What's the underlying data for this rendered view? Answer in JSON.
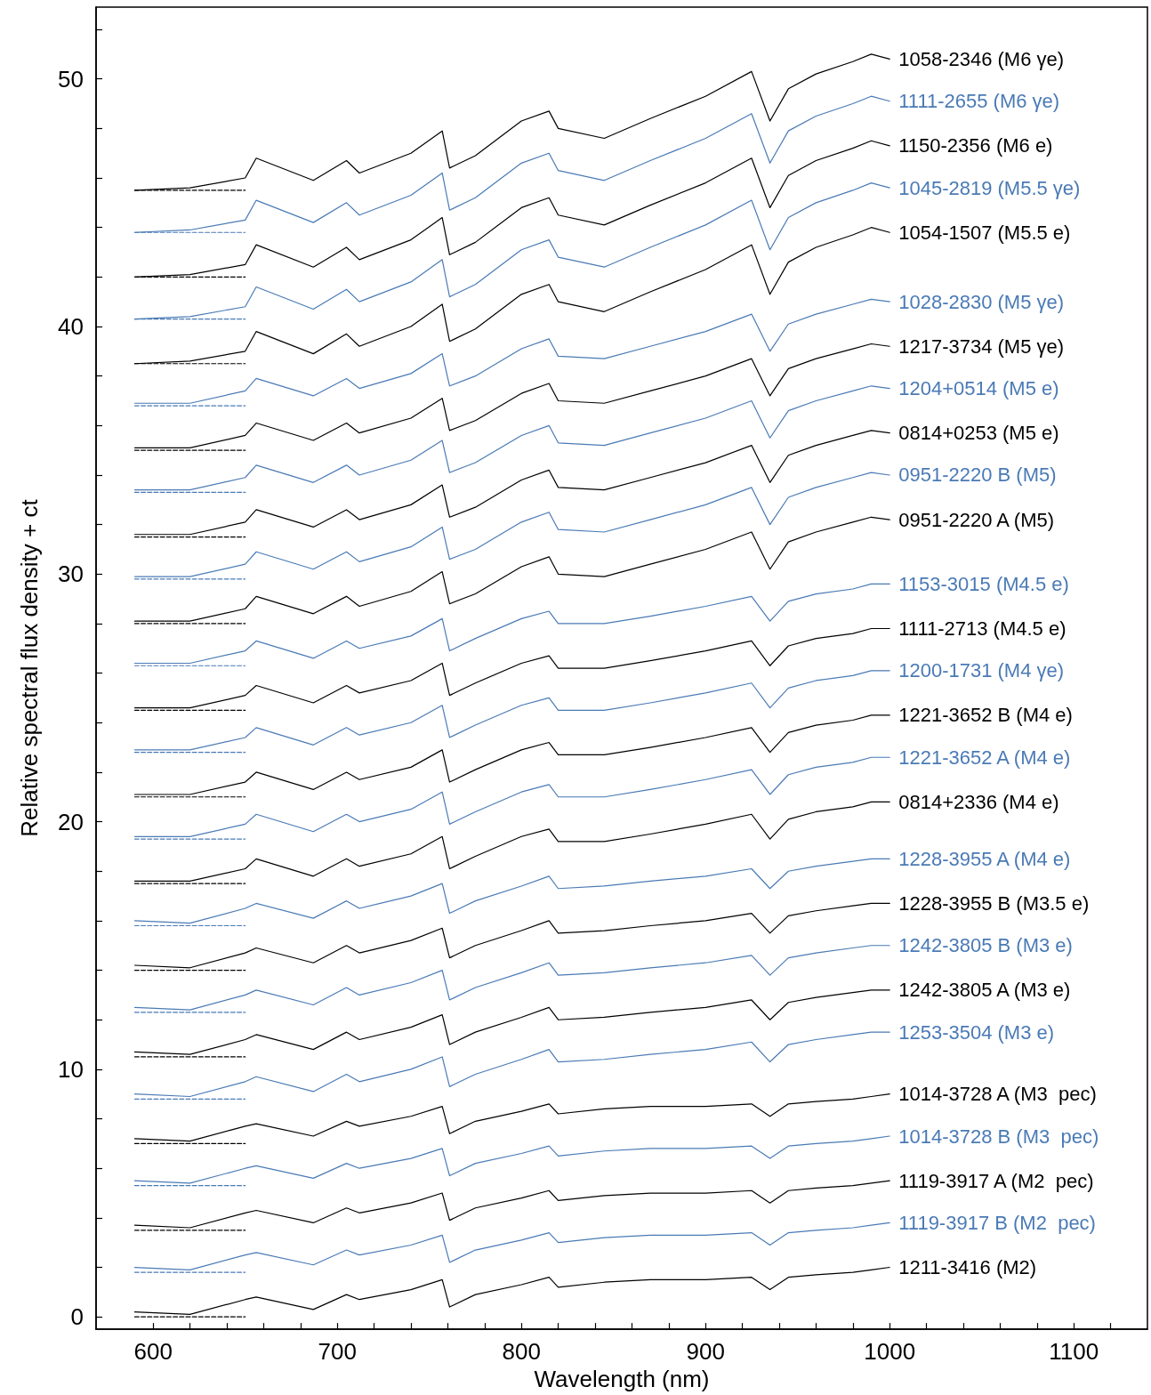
{
  "chart_data": {
    "type": "line",
    "xlabel": "Wavelength (nm)",
    "ylabel": "Relative spectral flux density + ct",
    "xlim": [
      569,
      1140
    ],
    "ylim": [
      -0.5,
      52.9
    ],
    "xticks": [
      600,
      {
        "value": 620,
        "label": null
      },
      {
        "value": 640,
        "label": null
      },
      {
        "value": 660,
        "label": null
      },
      {
        "value": 680,
        "label": null
      },
      700,
      {
        "value": 720,
        "label": null
      },
      {
        "value": 740,
        "label": null
      },
      {
        "value": 760,
        "label": null
      },
      {
        "value": 780,
        "label": null
      },
      800,
      {
        "value": 820,
        "label": null
      },
      {
        "value": 840,
        "label": null
      },
      {
        "value": 860,
        "label": null
      },
      {
        "value": 880,
        "label": null
      },
      900,
      {
        "value": 920,
        "label": null
      },
      {
        "value": 940,
        "label": null
      },
      {
        "value": 960,
        "label": null
      },
      {
        "value": 980,
        "label": null
      },
      1000,
      {
        "value": 1020,
        "label": null
      },
      {
        "value": 1040,
        "label": null
      },
      {
        "value": 1060,
        "label": null
      },
      {
        "value": 1080,
        "label": null
      },
      1100,
      {
        "value": 1120,
        "label": null
      }
    ],
    "yticks": [
      0,
      {
        "value": 2,
        "label": null
      },
      {
        "value": 4,
        "label": null
      },
      {
        "value": 6,
        "label": null
      },
      {
        "value": 8,
        "label": null
      },
      10,
      {
        "value": 12,
        "label": null
      },
      {
        "value": 14,
        "label": null
      },
      {
        "value": 16,
        "label": null
      },
      {
        "value": 18,
        "label": null
      },
      20,
      {
        "value": 22,
        "label": null
      },
      {
        "value": 24,
        "label": null
      },
      {
        "value": 26,
        "label": null
      },
      {
        "value": 28,
        "label": null
      },
      30,
      {
        "value": 32,
        "label": null
      },
      {
        "value": 34,
        "label": null
      },
      {
        "value": 36,
        "label": null
      },
      {
        "value": 38,
        "label": null
      },
      40,
      {
        "value": 42,
        "label": null
      },
      {
        "value": 44,
        "label": null
      },
      {
        "value": 46,
        "label": null
      },
      {
        "value": 48,
        "label": null
      },
      50,
      {
        "value": 52,
        "label": null
      }
    ],
    "grid": false,
    "legend": false,
    "marker": "none",
    "line_style": "solid",
    "x": [
      590,
      620,
      650,
      656,
      687,
      705,
      712,
      740,
      757,
      761,
      775,
      800,
      815,
      820,
      845,
      870,
      900,
      925,
      935,
      945,
      960,
      980,
      990,
      1000
    ],
    "series": [
      {
        "name": "1211-3416 (M2)",
        "color": "#000000",
        "values": [
          0.2,
          0.1,
          0.7,
          0.8,
          0.3,
          0.9,
          0.7,
          1.1,
          1.5,
          0.4,
          0.9,
          1.3,
          1.6,
          1.2,
          1.4,
          1.5,
          1.5,
          1.6,
          1.1,
          1.6,
          1.7,
          1.8,
          1.9,
          2.0
        ]
      },
      {
        "name": "1119-3917 B (M2  pec)",
        "color": "#4a7ab5",
        "values": [
          2.0,
          1.9,
          2.5,
          2.6,
          2.1,
          2.7,
          2.5,
          2.9,
          3.3,
          2.2,
          2.7,
          3.1,
          3.4,
          3.0,
          3.2,
          3.3,
          3.3,
          3.4,
          2.9,
          3.4,
          3.5,
          3.6,
          3.7,
          3.8
        ]
      },
      {
        "name": "1119-3917 A (M2  pec)",
        "color": "#000000",
        "values": [
          3.7,
          3.6,
          4.2,
          4.3,
          3.8,
          4.4,
          4.2,
          4.6,
          5.0,
          3.9,
          4.4,
          4.8,
          5.1,
          4.7,
          4.9,
          5.0,
          5.0,
          5.1,
          4.6,
          5.1,
          5.2,
          5.3,
          5.4,
          5.5
        ]
      },
      {
        "name": "1014-3728 B (M3  pec)",
        "color": "#4a7ab5",
        "values": [
          5.5,
          5.4,
          6.0,
          6.1,
          5.6,
          6.2,
          6.0,
          6.4,
          6.8,
          5.7,
          6.2,
          6.6,
          6.9,
          6.5,
          6.7,
          6.8,
          6.8,
          6.9,
          6.4,
          6.9,
          7.0,
          7.1,
          7.2,
          7.3
        ]
      },
      {
        "name": "1014-3728 A (M3  pec)",
        "color": "#000000",
        "values": [
          7.2,
          7.1,
          7.7,
          7.8,
          7.3,
          7.9,
          7.7,
          8.1,
          8.5,
          7.4,
          7.9,
          8.3,
          8.6,
          8.2,
          8.4,
          8.5,
          8.5,
          8.6,
          8.1,
          8.6,
          8.7,
          8.8,
          8.9,
          9.0
        ]
      },
      {
        "name": "1253-3504 (M3 e)",
        "color": "#4a7ab5",
        "values": [
          9.0,
          8.9,
          9.5,
          9.7,
          9.1,
          9.8,
          9.5,
          10.0,
          10.5,
          9.3,
          9.8,
          10.4,
          10.8,
          10.3,
          10.4,
          10.6,
          10.8,
          11.1,
          10.3,
          11.0,
          11.2,
          11.4,
          11.5,
          11.5
        ]
      },
      {
        "name": "1242-3805 A (M3 e)",
        "color": "#000000",
        "values": [
          10.7,
          10.6,
          11.2,
          11.4,
          10.8,
          11.5,
          11.2,
          11.7,
          12.2,
          11.0,
          11.5,
          12.1,
          12.5,
          12.0,
          12.1,
          12.3,
          12.5,
          12.8,
          12.0,
          12.7,
          12.9,
          13.1,
          13.2,
          13.2
        ]
      },
      {
        "name": "1242-3805 B (M3 e)",
        "color": "#4a7ab5",
        "values": [
          12.5,
          12.4,
          13.0,
          13.2,
          12.6,
          13.3,
          13.0,
          13.5,
          14.0,
          12.8,
          13.3,
          13.9,
          14.3,
          13.8,
          13.9,
          14.1,
          14.3,
          14.6,
          13.8,
          14.5,
          14.7,
          14.9,
          15.0,
          15.0
        ]
      },
      {
        "name": "1228-3955 B (M3.5 e)",
        "color": "#000000",
        "values": [
          14.2,
          14.1,
          14.7,
          14.9,
          14.3,
          15.0,
          14.7,
          15.2,
          15.7,
          14.5,
          15.0,
          15.6,
          16.0,
          15.5,
          15.6,
          15.8,
          16.0,
          16.3,
          15.5,
          16.2,
          16.4,
          16.6,
          16.7,
          16.7
        ]
      },
      {
        "name": "1228-3955 A (M4 e)",
        "color": "#4a7ab5",
        "values": [
          16.0,
          15.9,
          16.5,
          16.7,
          16.1,
          16.8,
          16.5,
          17.0,
          17.5,
          16.3,
          16.8,
          17.4,
          17.8,
          17.3,
          17.4,
          17.6,
          17.8,
          18.1,
          17.3,
          18.0,
          18.2,
          18.4,
          18.5,
          18.5
        ]
      },
      {
        "name": "0814+2336 (M4 e)",
        "color": "#000000",
        "values": [
          17.6,
          17.6,
          18.1,
          18.5,
          17.8,
          18.5,
          18.2,
          18.7,
          19.4,
          18.1,
          18.6,
          19.4,
          19.7,
          19.2,
          19.2,
          19.5,
          19.9,
          20.3,
          19.3,
          20.1,
          20.4,
          20.6,
          20.8,
          20.8
        ]
      },
      {
        "name": "1221-3652 A (M4 e)",
        "color": "#4a7ab5",
        "values": [
          19.4,
          19.4,
          19.9,
          20.3,
          19.6,
          20.3,
          20.0,
          20.5,
          21.2,
          19.9,
          20.4,
          21.2,
          21.5,
          21.0,
          21.0,
          21.3,
          21.7,
          22.1,
          21.1,
          21.9,
          22.2,
          22.4,
          22.6,
          22.6
        ]
      },
      {
        "name": "1221-3652 B (M4 e)",
        "color": "#000000",
        "values": [
          21.1,
          21.1,
          21.6,
          22.0,
          21.3,
          22.0,
          21.7,
          22.2,
          22.9,
          21.6,
          22.1,
          22.9,
          23.2,
          22.7,
          22.7,
          23.0,
          23.4,
          23.8,
          22.8,
          23.6,
          23.9,
          24.1,
          24.3,
          24.3
        ]
      },
      {
        "name": "1200-1731 (M4 γe)",
        "color": "#4a7ab5",
        "values": [
          22.9,
          22.9,
          23.4,
          23.8,
          23.1,
          23.8,
          23.5,
          24.0,
          24.7,
          23.4,
          23.9,
          24.7,
          25.0,
          24.5,
          24.5,
          24.8,
          25.2,
          25.6,
          24.6,
          25.4,
          25.7,
          25.9,
          26.1,
          26.1
        ]
      },
      {
        "name": "1111-2713 (M4.5 e)",
        "color": "#000000",
        "values": [
          24.6,
          24.6,
          25.1,
          25.5,
          24.8,
          25.5,
          25.2,
          25.7,
          26.4,
          25.1,
          25.6,
          26.4,
          26.7,
          26.2,
          26.2,
          26.5,
          26.9,
          27.3,
          26.3,
          27.1,
          27.4,
          27.6,
          27.8,
          27.8
        ]
      },
      {
        "name": "1153-3015 (M4.5 e)",
        "color": "#4a7ab5",
        "values": [
          26.4,
          26.4,
          26.9,
          27.3,
          26.6,
          27.3,
          27.0,
          27.5,
          28.2,
          26.9,
          27.4,
          28.2,
          28.5,
          28.0,
          28.0,
          28.3,
          28.7,
          29.1,
          28.1,
          28.9,
          29.2,
          29.4,
          29.6,
          29.6
        ]
      },
      {
        "name": "0951-2220 A (M5)",
        "color": "#000000",
        "values": [
          28.1,
          28.1,
          28.6,
          29.1,
          28.4,
          29.1,
          28.7,
          29.3,
          30.1,
          28.8,
          29.2,
          30.3,
          30.7,
          30.0,
          29.9,
          30.4,
          31.0,
          31.7,
          30.2,
          31.3,
          31.7,
          32.1,
          32.3,
          32.2
        ]
      },
      {
        "name": "0951-2220 B (M5)",
        "color": "#4a7ab5",
        "values": [
          29.9,
          29.9,
          30.4,
          30.9,
          30.2,
          30.9,
          30.5,
          31.1,
          31.9,
          30.6,
          31.0,
          32.1,
          32.5,
          31.8,
          31.7,
          32.2,
          32.8,
          33.5,
          32.0,
          33.1,
          33.5,
          33.9,
          34.1,
          34.0
        ]
      },
      {
        "name": "0814+0253 (M5 e)",
        "color": "#000000",
        "values": [
          31.6,
          31.6,
          32.1,
          32.6,
          31.9,
          32.6,
          32.2,
          32.8,
          33.6,
          32.3,
          32.7,
          33.8,
          34.2,
          33.5,
          33.4,
          33.9,
          34.5,
          35.2,
          33.7,
          34.8,
          35.2,
          35.6,
          35.8,
          35.7
        ]
      },
      {
        "name": "1204+0514 (M5 e)",
        "color": "#4a7ab5",
        "values": [
          33.4,
          33.4,
          33.9,
          34.4,
          33.7,
          34.4,
          34.0,
          34.6,
          35.4,
          34.1,
          34.5,
          35.6,
          36.0,
          35.3,
          35.2,
          35.7,
          36.3,
          37.0,
          35.5,
          36.6,
          37.0,
          37.4,
          37.6,
          37.5
        ]
      },
      {
        "name": "1217-3734 (M5 γe)",
        "color": "#000000",
        "values": [
          35.1,
          35.1,
          35.6,
          36.1,
          35.4,
          36.1,
          35.7,
          36.3,
          37.1,
          35.8,
          36.2,
          37.3,
          37.7,
          37.0,
          36.9,
          37.4,
          38.0,
          38.7,
          37.2,
          38.3,
          38.7,
          39.1,
          39.3,
          39.2
        ]
      },
      {
        "name": "1028-2830 (M5 γe)",
        "color": "#4a7ab5",
        "values": [
          36.9,
          36.9,
          37.4,
          37.9,
          37.2,
          37.9,
          37.5,
          38.1,
          38.9,
          37.6,
          38.0,
          39.1,
          39.5,
          38.8,
          38.7,
          39.2,
          39.8,
          40.5,
          39.0,
          40.1,
          40.5,
          40.9,
          41.1,
          41.0
        ]
      },
      {
        "name": "1054-1507 (M5.5 e)",
        "color": "#000000",
        "values": [
          38.5,
          38.6,
          39.0,
          39.8,
          38.9,
          39.7,
          39.2,
          40.0,
          40.9,
          39.4,
          39.9,
          41.3,
          41.7,
          41.0,
          40.6,
          41.4,
          42.3,
          43.3,
          41.3,
          42.6,
          43.2,
          43.7,
          44.0,
          43.8
        ]
      },
      {
        "name": "1045-2819 (M5.5 γe)",
        "color": "#4a7ab5",
        "values": [
          40.3,
          40.4,
          40.8,
          41.6,
          40.7,
          41.5,
          41.0,
          41.8,
          42.7,
          41.2,
          41.7,
          43.1,
          43.5,
          42.8,
          42.4,
          43.2,
          44.1,
          45.1,
          43.1,
          44.4,
          45.0,
          45.5,
          45.8,
          45.6
        ]
      },
      {
        "name": "1150-2356 (M6 e)",
        "color": "#000000",
        "values": [
          42.0,
          42.1,
          42.5,
          43.3,
          42.4,
          43.2,
          42.7,
          43.5,
          44.4,
          42.9,
          43.4,
          44.8,
          45.2,
          44.5,
          44.1,
          44.9,
          45.8,
          46.8,
          44.8,
          46.1,
          46.7,
          47.2,
          47.5,
          47.3
        ]
      },
      {
        "name": "1111-2655 (M6 γe)",
        "color": "#4a7ab5",
        "values": [
          43.8,
          43.9,
          44.3,
          45.1,
          44.2,
          45.0,
          44.5,
          45.3,
          46.2,
          44.7,
          45.2,
          46.6,
          47.0,
          46.3,
          45.9,
          46.7,
          47.6,
          48.6,
          46.6,
          47.9,
          48.5,
          49.0,
          49.3,
          49.1
        ]
      },
      {
        "name": "1058-2346 (M6 γe)",
        "color": "#000000",
        "values": [
          45.5,
          45.6,
          46.0,
          46.8,
          45.9,
          46.7,
          46.2,
          47.0,
          47.9,
          46.4,
          46.9,
          48.3,
          48.7,
          48.0,
          47.6,
          48.4,
          49.3,
          50.3,
          48.3,
          49.6,
          50.2,
          50.7,
          51.0,
          50.8
        ]
      },
      {
        "color": "#000000",
        "line_style": "dashed",
        "values": [
          0,
          0,
          0,
          null,
          null,
          null,
          null,
          null,
          null,
          null,
          null,
          null,
          null,
          null,
          null,
          null,
          null,
          null,
          null,
          null,
          null,
          null,
          null,
          null
        ]
      },
      {
        "color": "#4a7ab5",
        "line_style": "dashed",
        "values": [
          1.8,
          1.8,
          1.8,
          null,
          null,
          null,
          null,
          null,
          null,
          null,
          null,
          null,
          null,
          null,
          null,
          null,
          null,
          null,
          null,
          null,
          null,
          null,
          null,
          null
        ]
      },
      {
        "color": "#000000",
        "line_style": "dashed",
        "values": [
          3.5,
          3.5,
          3.5,
          null,
          null,
          null,
          null,
          null,
          null,
          null,
          null,
          null,
          null,
          null,
          null,
          null,
          null,
          null,
          null,
          null,
          null,
          null,
          null,
          null
        ]
      },
      {
        "color": "#4a7ab5",
        "line_style": "dashed",
        "values": [
          5.3,
          5.3,
          5.3,
          null,
          null,
          null,
          null,
          null,
          null,
          null,
          null,
          null,
          null,
          null,
          null,
          null,
          null,
          null,
          null,
          null,
          null,
          null,
          null,
          null
        ]
      },
      {
        "color": "#000000",
        "line_style": "dashed",
        "values": [
          7,
          7,
          7,
          null,
          null,
          null,
          null,
          null,
          null,
          null,
          null,
          null,
          null,
          null,
          null,
          null,
          null,
          null,
          null,
          null,
          null,
          null,
          null,
          null
        ]
      },
      {
        "color": "#4a7ab5",
        "line_style": "dashed",
        "values": [
          8.8,
          8.8,
          8.8,
          null,
          null,
          null,
          null,
          null,
          null,
          null,
          null,
          null,
          null,
          null,
          null,
          null,
          null,
          null,
          null,
          null,
          null,
          null,
          null,
          null
        ]
      },
      {
        "color": "#000000",
        "line_style": "dashed",
        "values": [
          10.5,
          10.5,
          10.5,
          null,
          null,
          null,
          null,
          null,
          null,
          null,
          null,
          null,
          null,
          null,
          null,
          null,
          null,
          null,
          null,
          null,
          null,
          null,
          null,
          null
        ]
      },
      {
        "color": "#4a7ab5",
        "line_style": "dashed",
        "values": [
          12.3,
          12.3,
          12.3,
          null,
          null,
          null,
          null,
          null,
          null,
          null,
          null,
          null,
          null,
          null,
          null,
          null,
          null,
          null,
          null,
          null,
          null,
          null,
          null,
          null
        ]
      },
      {
        "color": "#000000",
        "line_style": "dashed",
        "values": [
          14,
          14,
          14,
          null,
          null,
          null,
          null,
          null,
          null,
          null,
          null,
          null,
          null,
          null,
          null,
          null,
          null,
          null,
          null,
          null,
          null,
          null,
          null,
          null
        ]
      },
      {
        "color": "#4a7ab5",
        "line_style": "dashed",
        "values": [
          15.8,
          15.8,
          15.8,
          null,
          null,
          null,
          null,
          null,
          null,
          null,
          null,
          null,
          null,
          null,
          null,
          null,
          null,
          null,
          null,
          null,
          null,
          null,
          null,
          null
        ]
      },
      {
        "color": "#000000",
        "line_style": "dashed",
        "values": [
          17.5,
          17.5,
          17.5,
          null,
          null,
          null,
          null,
          null,
          null,
          null,
          null,
          null,
          null,
          null,
          null,
          null,
          null,
          null,
          null,
          null,
          null,
          null,
          null,
          null
        ]
      },
      {
        "color": "#4a7ab5",
        "line_style": "dashed",
        "values": [
          19.3,
          19.3,
          19.3,
          null,
          null,
          null,
          null,
          null,
          null,
          null,
          null,
          null,
          null,
          null,
          null,
          null,
          null,
          null,
          null,
          null,
          null,
          null,
          null,
          null
        ]
      },
      {
        "color": "#000000",
        "line_style": "dashed",
        "values": [
          21,
          21,
          21,
          null,
          null,
          null,
          null,
          null,
          null,
          null,
          null,
          null,
          null,
          null,
          null,
          null,
          null,
          null,
          null,
          null,
          null,
          null,
          null,
          null
        ]
      },
      {
        "color": "#4a7ab5",
        "line_style": "dashed",
        "values": [
          22.8,
          22.8,
          22.8,
          null,
          null,
          null,
          null,
          null,
          null,
          null,
          null,
          null,
          null,
          null,
          null,
          null,
          null,
          null,
          null,
          null,
          null,
          null,
          null,
          null
        ]
      },
      {
        "color": "#000000",
        "line_style": "dashed",
        "values": [
          24.5,
          24.5,
          24.5,
          null,
          null,
          null,
          null,
          null,
          null,
          null,
          null,
          null,
          null,
          null,
          null,
          null,
          null,
          null,
          null,
          null,
          null,
          null,
          null,
          null
        ]
      },
      {
        "color": "#4a7ab5",
        "line_style": "dashed",
        "values": [
          26.3,
          26.3,
          26.3,
          null,
          null,
          null,
          null,
          null,
          null,
          null,
          null,
          null,
          null,
          null,
          null,
          null,
          null,
          null,
          null,
          null,
          null,
          null,
          null,
          null
        ]
      },
      {
        "color": "#000000",
        "line_style": "dashed",
        "values": [
          28,
          28,
          28,
          null,
          null,
          null,
          null,
          null,
          null,
          null,
          null,
          null,
          null,
          null,
          null,
          null,
          null,
          null,
          null,
          null,
          null,
          null,
          null,
          null
        ]
      },
      {
        "color": "#4a7ab5",
        "line_style": "dashed",
        "values": [
          29.8,
          29.8,
          29.8,
          null,
          null,
          null,
          null,
          null,
          null,
          null,
          null,
          null,
          null,
          null,
          null,
          null,
          null,
          null,
          null,
          null,
          null,
          null,
          null,
          null
        ]
      },
      {
        "color": "#000000",
        "line_style": "dashed",
        "values": [
          31.5,
          31.5,
          31.5,
          null,
          null,
          null,
          null,
          null,
          null,
          null,
          null,
          null,
          null,
          null,
          null,
          null,
          null,
          null,
          null,
          null,
          null,
          null,
          null,
          null
        ]
      },
      {
        "color": "#4a7ab5",
        "line_style": "dashed",
        "values": [
          33.3,
          33.3,
          33.3,
          null,
          null,
          null,
          null,
          null,
          null,
          null,
          null,
          null,
          null,
          null,
          null,
          null,
          null,
          null,
          null,
          null,
          null,
          null,
          null,
          null
        ]
      },
      {
        "color": "#000000",
        "line_style": "dashed",
        "values": [
          35,
          35,
          35,
          null,
          null,
          null,
          null,
          null,
          null,
          null,
          null,
          null,
          null,
          null,
          null,
          null,
          null,
          null,
          null,
          null,
          null,
          null,
          null,
          null
        ]
      },
      {
        "color": "#4a7ab5",
        "line_style": "dashed",
        "values": [
          36.8,
          36.8,
          36.8,
          null,
          null,
          null,
          null,
          null,
          null,
          null,
          null,
          null,
          null,
          null,
          null,
          null,
          null,
          null,
          null,
          null,
          null,
          null,
          null,
          null
        ]
      },
      {
        "color": "#000000",
        "line_style": "dashed",
        "values": [
          38.5,
          38.5,
          38.5,
          null,
          null,
          null,
          null,
          null,
          null,
          null,
          null,
          null,
          null,
          null,
          null,
          null,
          null,
          null,
          null,
          null,
          null,
          null,
          null,
          null
        ]
      },
      {
        "color": "#4a7ab5",
        "line_style": "dashed",
        "values": [
          40.3,
          40.3,
          40.3,
          null,
          null,
          null,
          null,
          null,
          null,
          null,
          null,
          null,
          null,
          null,
          null,
          null,
          null,
          null,
          null,
          null,
          null,
          null,
          null,
          null
        ]
      },
      {
        "color": "#000000",
        "line_style": "dashed",
        "values": [
          42,
          42,
          42,
          null,
          null,
          null,
          null,
          null,
          null,
          null,
          null,
          null,
          null,
          null,
          null,
          null,
          null,
          null,
          null,
          null,
          null,
          null,
          null,
          null
        ]
      },
      {
        "color": "#4a7ab5",
        "line_style": "dashed",
        "values": [
          43.8,
          43.8,
          43.8,
          null,
          null,
          null,
          null,
          null,
          null,
          null,
          null,
          null,
          null,
          null,
          null,
          null,
          null,
          null,
          null,
          null,
          null,
          null,
          null,
          null
        ]
      },
      {
        "color": "#000000",
        "line_style": "dashed",
        "values": [
          45.5,
          45.5,
          45.5,
          null,
          null,
          null,
          null,
          null,
          null,
          null,
          null,
          null,
          null,
          null,
          null,
          null,
          null,
          null,
          null,
          null,
          null,
          null,
          null,
          null
        ]
      }
    ]
  }
}
